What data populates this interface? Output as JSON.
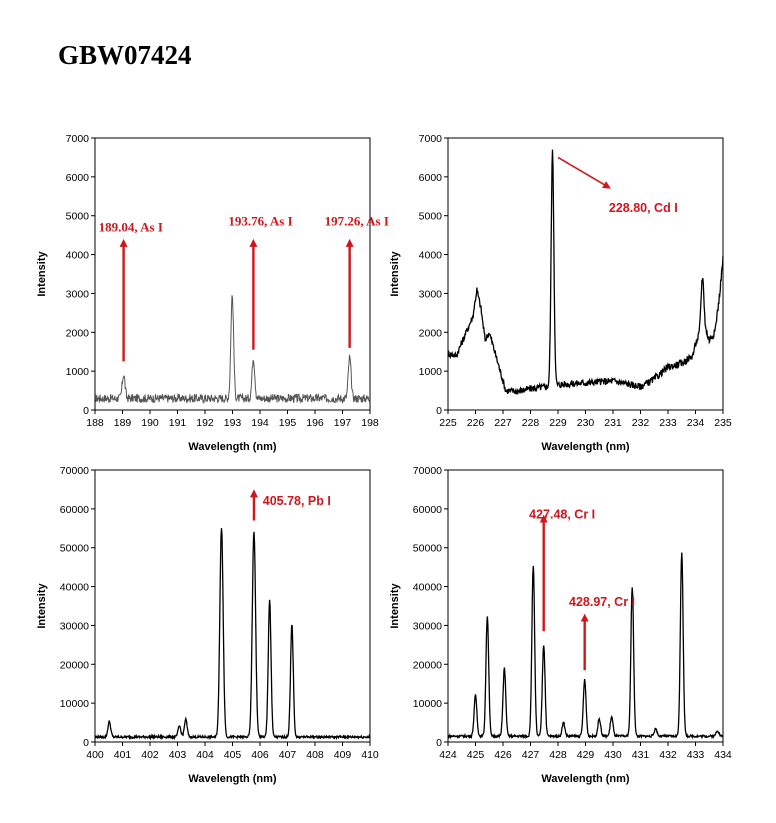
{
  "title": "GBW07424",
  "annotation_color": "#d0161c",
  "chart_data": [
    {
      "type": "line",
      "xlabel": "Wavelength (nm)",
      "ylabel": "Intensity",
      "xlim": [
        188,
        198
      ],
      "ylim": [
        0,
        7000
      ],
      "xticks": [
        188,
        189,
        190,
        191,
        192,
        193,
        194,
        195,
        196,
        197,
        198
      ],
      "yticks": [
        0,
        1000,
        2000,
        3000,
        4000,
        5000,
        6000,
        7000
      ],
      "baseline": 300,
      "noise": 110,
      "peaks": [
        {
          "x": 189.04,
          "y": 620,
          "w": 0.05
        },
        {
          "x": 192.99,
          "y": 2650,
          "w": 0.05
        },
        {
          "x": 193.76,
          "y": 1050,
          "w": 0.05
        },
        {
          "x": 197.26,
          "y": 1050,
          "w": 0.05
        }
      ],
      "line_color": "#555555",
      "annotations": [
        {
          "text": "189.04, As I",
          "x": 189.04,
          "y_tip": 4300,
          "y_base": 1250,
          "text_y": 4600,
          "style": "serif",
          "anchor": "start"
        },
        {
          "text": "193.76, As I",
          "x": 193.76,
          "y_tip": 4300,
          "y_base": 1550,
          "text_y": 4750,
          "style": "serif",
          "anchor": "start"
        },
        {
          "text": "197.26, As I",
          "x": 197.26,
          "y_tip": 4300,
          "y_base": 1600,
          "text_y": 4750,
          "style": "serif",
          "anchor": "start"
        }
      ]
    },
    {
      "type": "line",
      "xlabel": "Wavelength (nm)",
      "ylabel": "Intensity",
      "xlim": [
        225,
        235
      ],
      "ylim": [
        0,
        7000
      ],
      "xticks": [
        225,
        226,
        227,
        228,
        229,
        230,
        231,
        232,
        233,
        234,
        235
      ],
      "yticks": [
        0,
        1000,
        2000,
        3000,
        4000,
        5000,
        6000,
        7000
      ],
      "baseline": 650,
      "noise": 90,
      "segments": [
        [
          225,
          1450
        ],
        [
          225.3,
          1400
        ],
        [
          225.6,
          1900
        ],
        [
          225.9,
          2400
        ],
        [
          226.05,
          3100
        ],
        [
          226.2,
          2600
        ],
        [
          226.35,
          1800
        ],
        [
          226.5,
          2000
        ],
        [
          226.7,
          1500
        ],
        [
          226.9,
          1000
        ],
        [
          227.1,
          500
        ],
        [
          227.5,
          480
        ],
        [
          228.0,
          550
        ],
        [
          228.6,
          600
        ],
        [
          229.0,
          650
        ],
        [
          230.0,
          700
        ],
        [
          231.0,
          750
        ],
        [
          232.0,
          600
        ],
        [
          232.5,
          800
        ],
        [
          233.0,
          1100
        ],
        [
          233.5,
          1200
        ],
        [
          233.9,
          1400
        ],
        [
          234.0,
          1700
        ],
        [
          234.3,
          2200
        ],
        [
          234.5,
          1800
        ],
        [
          234.7,
          2000
        ],
        [
          234.85,
          2800
        ],
        [
          235,
          3900
        ]
      ],
      "peaks": [
        {
          "x": 228.8,
          "y": 6000,
          "w": 0.05
        },
        {
          "x": 234.25,
          "y": 1300,
          "w": 0.05
        }
      ],
      "line_color": "#000000",
      "annotations": [
        {
          "text": "228.80, Cd I",
          "x_start": 229.0,
          "y_start": 6500,
          "x": 230.8,
          "y_tip": 5750,
          "text_x": 230.85,
          "text_y": 5100,
          "style": "sans",
          "anchor": "start",
          "diagonal": true
        }
      ]
    },
    {
      "type": "line",
      "xlabel": "Wavelength (nm)",
      "ylabel": "Intensity",
      "xlim": [
        400,
        410
      ],
      "ylim": [
        0,
        70000
      ],
      "xticks": [
        400,
        401,
        402,
        403,
        404,
        405,
        406,
        407,
        408,
        409,
        410
      ],
      "yticks": [
        0,
        10000,
        20000,
        30000,
        40000,
        50000,
        60000,
        70000
      ],
      "baseline": 1300,
      "noise": 300,
      "peaks": [
        {
          "x": 400.52,
          "y": 4000,
          "w": 0.05
        },
        {
          "x": 403.07,
          "y": 2800,
          "w": 0.05
        },
        {
          "x": 403.3,
          "y": 4500,
          "w": 0.05
        },
        {
          "x": 404.6,
          "y": 54000,
          "w": 0.06
        },
        {
          "x": 405.78,
          "y": 53000,
          "w": 0.06
        },
        {
          "x": 406.35,
          "y": 35500,
          "w": 0.05
        },
        {
          "x": 407.16,
          "y": 29000,
          "w": 0.05
        }
      ],
      "line_color": "#000000",
      "annotations": [
        {
          "text": "405.78, Pb I",
          "x": 405.78,
          "y_tip": 64000,
          "y_base": 57000,
          "text_x": 406.1,
          "text_y": 61000,
          "style": "sans",
          "anchor": "start"
        }
      ]
    },
    {
      "type": "line",
      "xlabel": "Wavelength (nm)",
      "ylabel": "Intensity",
      "xlim": [
        424,
        434
      ],
      "ylim": [
        0,
        70000
      ],
      "xticks": [
        424,
        425,
        426,
        427,
        428,
        429,
        430,
        431,
        432,
        433,
        434
      ],
      "yticks": [
        0,
        10000,
        20000,
        30000,
        40000,
        50000,
        60000,
        70000
      ],
      "baseline": 1500,
      "noise": 300,
      "peaks": [
        {
          "x": 425.0,
          "y": 10500,
          "w": 0.05
        },
        {
          "x": 425.43,
          "y": 31000,
          "w": 0.05
        },
        {
          "x": 426.05,
          "y": 17500,
          "w": 0.05
        },
        {
          "x": 427.1,
          "y": 44000,
          "w": 0.05
        },
        {
          "x": 427.48,
          "y": 23500,
          "w": 0.05
        },
        {
          "x": 428.2,
          "y": 3500,
          "w": 0.05
        },
        {
          "x": 428.97,
          "y": 14500,
          "w": 0.05
        },
        {
          "x": 429.5,
          "y": 4500,
          "w": 0.05
        },
        {
          "x": 429.95,
          "y": 5000,
          "w": 0.05
        },
        {
          "x": 430.7,
          "y": 38500,
          "w": 0.05
        },
        {
          "x": 431.55,
          "y": 2000,
          "w": 0.05
        },
        {
          "x": 432.5,
          "y": 47500,
          "w": 0.05
        },
        {
          "x": 433.8,
          "y": 1500,
          "w": 0.05
        }
      ],
      "line_color": "#000000",
      "annotations": [
        {
          "text": "427.48, Cr I",
          "x": 427.48,
          "y_tip": 57500,
          "y_base": 28500,
          "text_x": 426.95,
          "text_y": 57500,
          "style": "sans",
          "anchor": "start"
        },
        {
          "text": "428.97, Cr I",
          "x": 428.97,
          "y_tip": 32000,
          "y_base": 18500,
          "text_x": 428.4,
          "text_y": 35000,
          "style": "sans",
          "anchor": "start"
        }
      ]
    }
  ]
}
